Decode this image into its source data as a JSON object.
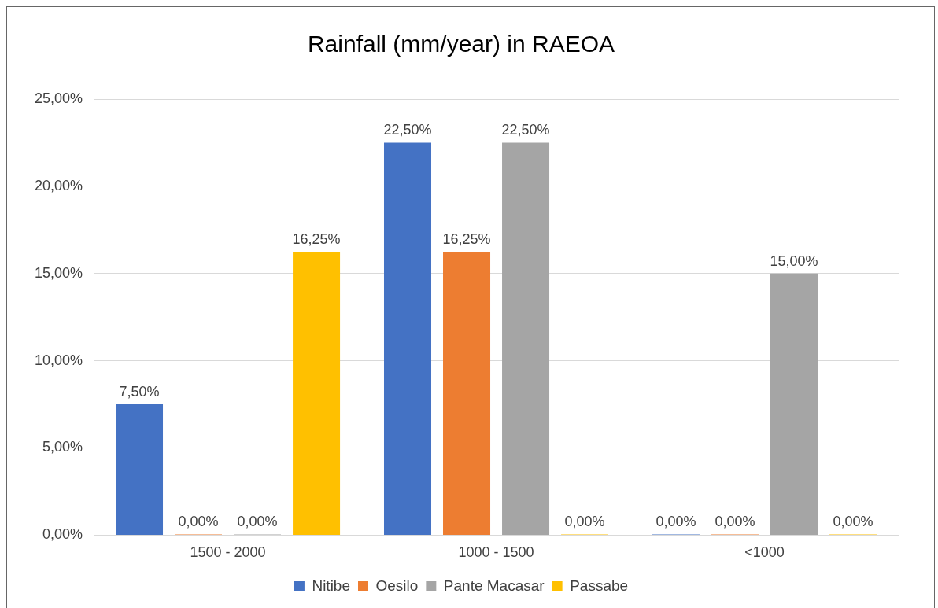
{
  "chart_data": {
    "type": "bar",
    "title": "Rainfall (mm/year) in RAEOA",
    "categories": [
      "1500 - 2000",
      "1000 - 1500",
      "<1000"
    ],
    "series": [
      {
        "name": "Nitibe",
        "color": "#4472c4",
        "values": [
          7.5,
          22.5,
          0
        ],
        "value_labels": [
          "7,50%",
          "22,50%",
          "0,00%"
        ]
      },
      {
        "name": "Oesilo",
        "color": "#ed7d31",
        "values": [
          0,
          16.25,
          0
        ],
        "value_labels": [
          "0,00%",
          "16,25%",
          "0,00%"
        ]
      },
      {
        "name": "Pante Macasar",
        "color": "#a5a5a5",
        "values": [
          0,
          22.5,
          15
        ],
        "value_labels": [
          "0,00%",
          "22,50%",
          "15,00%"
        ]
      },
      {
        "name": "Passabe",
        "color": "#ffc000",
        "values": [
          16.25,
          0,
          0
        ],
        "value_labels": [
          "16,25%",
          "0,00%",
          "0,00%"
        ]
      }
    ],
    "ylim": [
      0,
      25
    ],
    "yticks": [
      {
        "value": 0,
        "label": "0,00%"
      },
      {
        "value": 5,
        "label": "5,00%"
      },
      {
        "value": 10,
        "label": "10,00%"
      },
      {
        "value": 15,
        "label": "15,00%"
      },
      {
        "value": 20,
        "label": "20,00%"
      },
      {
        "value": 25,
        "label": "25,00%"
      }
    ],
    "grid": "y",
    "legend": "bottom"
  }
}
